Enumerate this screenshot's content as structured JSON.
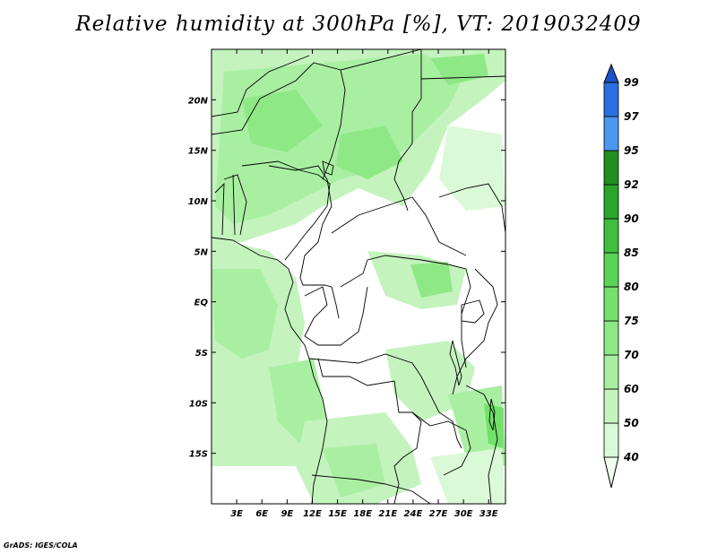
{
  "title": "Relative humidity at 300hPa [%], VT: 2019032409",
  "credit": "GrADS: IGES/COLA",
  "map": {
    "lon_range": [
      0,
      35
    ],
    "lat_range": [
      -20,
      25
    ],
    "lon_ticks": [
      "3E",
      "6E",
      "9E",
      "12E",
      "15E",
      "18E",
      "21E",
      "24E",
      "27E",
      "30E",
      "33E"
    ],
    "lon_tick_values": [
      3,
      6,
      9,
      12,
      15,
      18,
      21,
      24,
      27,
      30,
      33
    ],
    "lat_ticks": [
      "20N",
      "15N",
      "10N",
      "5N",
      "EQ",
      "5S",
      "10S",
      "15S"
    ],
    "lat_tick_values": [
      20,
      15,
      10,
      5,
      0,
      -5,
      -10,
      -15
    ]
  },
  "colorbar": {
    "levels": [
      "40",
      "50",
      "60",
      "70",
      "75",
      "80",
      "85",
      "90",
      "92",
      "95",
      "97",
      "99"
    ],
    "colors": [
      "#f0fef0",
      "#daf9d6",
      "#c4f3be",
      "#a9efa2",
      "#8fe886",
      "#73e16a",
      "#5ad455",
      "#3fbf3d",
      "#2aa52a",
      "#1f8f20",
      "#4c96f2",
      "#2a6fe0",
      "#1b54c8"
    ]
  }
}
